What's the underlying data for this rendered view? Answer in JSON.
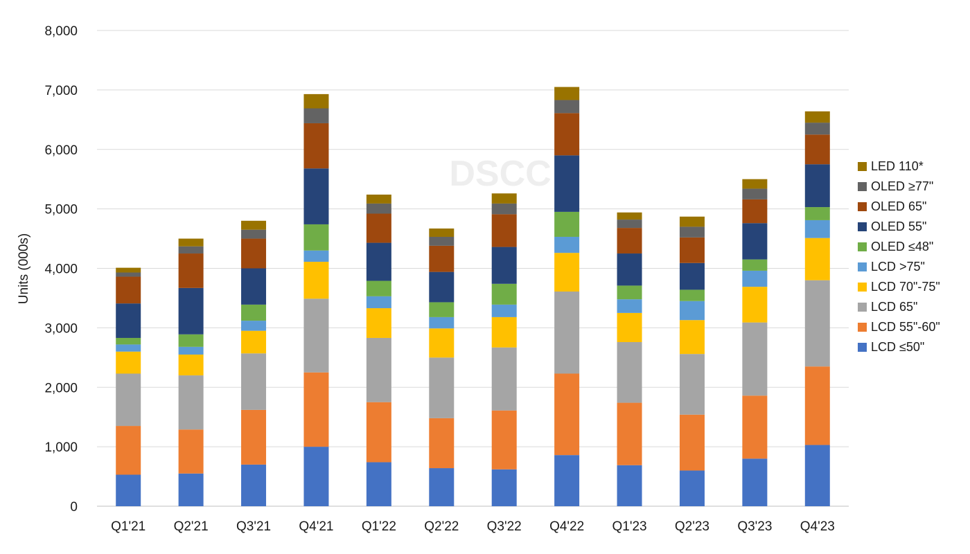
{
  "chart_data": {
    "type": "bar",
    "stacked": true,
    "ylabel": "Units (000s)",
    "ylim": [
      0,
      8000
    ],
    "yticks": [
      0,
      1000,
      2000,
      3000,
      4000,
      5000,
      6000,
      7000,
      8000
    ],
    "ytick_labels": [
      "0",
      "1,000",
      "2,000",
      "3,000",
      "4,000",
      "5,000",
      "6,000",
      "7,000",
      "8,000"
    ],
    "grid": true,
    "legend_position": "right",
    "watermark": "DSCC",
    "categories": [
      "Q1'21",
      "Q2'21",
      "Q3'21",
      "Q4'21",
      "Q1'22",
      "Q2'22",
      "Q3'22",
      "Q4'22",
      "Q1'23",
      "Q2'23",
      "Q3'23",
      "Q4'23"
    ],
    "series": [
      {
        "name": "LCD  ≤50\"",
        "color": "#4472C4",
        "values": [
          530,
          550,
          700,
          1000,
          740,
          640,
          620,
          860,
          690,
          600,
          800,
          1030
        ]
      },
      {
        "name": "LCD 55\"-60\"",
        "color": "#ED7D31",
        "values": [
          820,
          740,
          920,
          1250,
          1010,
          840,
          990,
          1370,
          1050,
          940,
          1060,
          1320
        ]
      },
      {
        "name": "LCD 65\"",
        "color": "#A5A5A5",
        "values": [
          880,
          910,
          950,
          1240,
          1080,
          1020,
          1060,
          1380,
          1020,
          1020,
          1230,
          1450
        ]
      },
      {
        "name": "LCD 70\"-75\"",
        "color": "#FFC000",
        "values": [
          370,
          350,
          380,
          620,
          500,
          490,
          510,
          650,
          490,
          570,
          600,
          710
        ]
      },
      {
        "name": "LCD >75\"",
        "color": "#5B9BD5",
        "values": [
          120,
          130,
          170,
          190,
          200,
          190,
          210,
          270,
          230,
          320,
          270,
          300
        ]
      },
      {
        "name": "OLED  ≤48\"",
        "color": "#70AD47",
        "values": [
          110,
          210,
          270,
          440,
          260,
          250,
          350,
          420,
          230,
          190,
          190,
          220
        ]
      },
      {
        "name": "OLED 55\"",
        "color": "#264478",
        "values": [
          580,
          780,
          610,
          940,
          640,
          510,
          620,
          950,
          540,
          450,
          610,
          720
        ]
      },
      {
        "name": "OLED 65\"",
        "color": "#9E480E",
        "values": [
          450,
          580,
          500,
          760,
          490,
          440,
          550,
          710,
          430,
          430,
          400,
          500
        ]
      },
      {
        "name": "OLED ≥77\"",
        "color": "#636363",
        "values": [
          70,
          120,
          150,
          250,
          170,
          150,
          180,
          220,
          140,
          180,
          180,
          200
        ]
      },
      {
        "name": "LED 110*",
        "color": "#997300",
        "values": [
          80,
          130,
          150,
          240,
          150,
          140,
          170,
          220,
          120,
          170,
          160,
          190
        ]
      }
    ]
  }
}
